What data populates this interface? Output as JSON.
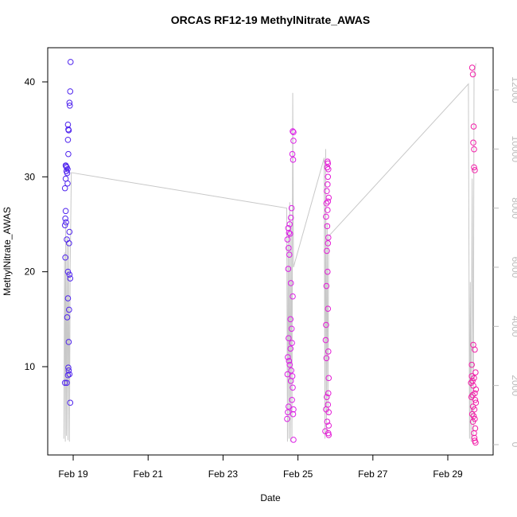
{
  "chart_data": {
    "type": "scatter",
    "title": "ORCAS RF12-19 MethylNitrate_AWAS",
    "x_label": "Date",
    "y_label": "MethylNitrate_AWAS",
    "xlim": [
      18.32,
      30.21
    ],
    "ylim": [
      0.7,
      43.6
    ],
    "y2lim": [
      -350,
      13426
    ],
    "xticks": [
      {
        "value": 19,
        "label": "Feb 19"
      },
      {
        "value": 21,
        "label": "Feb 21"
      },
      {
        "value": 23,
        "label": "Feb 23"
      },
      {
        "value": 25,
        "label": "Feb 25"
      },
      {
        "value": 27,
        "label": "Feb 27"
      },
      {
        "value": 29,
        "label": "Feb 29"
      }
    ],
    "yticks": [
      10,
      20,
      30,
      40
    ],
    "y2ticks": [
      0,
      2000,
      4000,
      6000,
      8000,
      10000,
      12000
    ],
    "series": [
      {
        "color": "#4f24ee",
        "x": [
          18.93,
          18.92,
          18.9,
          18.91,
          18.86,
          18.87,
          18.88,
          18.86,
          18.87,
          18.8,
          18.81,
          18.83,
          18.85,
          18.82,
          18.84,
          18.8,
          18.85,
          18.78,
          18.8,
          18.79,
          18.81,
          18.78,
          18.9,
          18.83,
          18.89,
          18.79,
          18.86,
          18.9,
          18.92,
          18.86,
          18.89,
          18.84,
          18.88,
          18.87,
          18.88,
          18.9,
          18.86,
          18.78,
          18.83,
          18.92
        ],
        "values": [
          42.1,
          39,
          37.8,
          37.5,
          35.5,
          35,
          34.9,
          33.9,
          32.4,
          31.2,
          31.1,
          31,
          30.8,
          30.6,
          30.4,
          29.8,
          29.3,
          28.8,
          26.4,
          25.6,
          25.2,
          24.9,
          24.2,
          23.4,
          23,
          21.5,
          20,
          19.7,
          19.3,
          17.2,
          16,
          15.2,
          12.6,
          9.9,
          9.6,
          9.2,
          9.1,
          8.3,
          8.3,
          6.2
        ]
      },
      {
        "color": "#dc1fe6",
        "x": [
          24.86,
          24.88,
          24.88,
          24.85,
          24.87,
          24.83,
          24.81,
          24.78,
          24.74,
          24.76,
          24.79,
          24.72,
          24.75,
          24.77,
          24.74,
          24.81,
          24.86,
          24.8,
          24.83,
          24.75,
          24.84,
          24.8,
          24.73,
          24.76,
          24.78,
          24.82,
          24.72,
          24.85,
          24.81,
          24.86,
          24.84,
          24.75,
          24.88,
          24.73,
          24.87,
          24.71,
          24.88
        ],
        "values": [
          34.8,
          34.7,
          33.8,
          32.4,
          31.8,
          26.7,
          25.7,
          25,
          24.6,
          24.1,
          24,
          23.4,
          22.5,
          21.8,
          20.3,
          18.8,
          17.4,
          15,
          14,
          13,
          12.5,
          11.9,
          11,
          10.6,
          10.2,
          9.6,
          9.2,
          9,
          8.5,
          7.8,
          6.5,
          5.8,
          5.5,
          5.2,
          5,
          4.5,
          2.3
        ]
      },
      {
        "color": "#e41ed6",
        "x": [
          25.79,
          25.8,
          25.78,
          25.81,
          25.8,
          25.79,
          25.77,
          25.82,
          25.8,
          25.76,
          25.79,
          25.75,
          25.78,
          25.81,
          25.8,
          25.77,
          25.79,
          25.76,
          25.8,
          25.75,
          25.74,
          25.81,
          25.76,
          25.82,
          25.81,
          25.77,
          25.8,
          25.75,
          25.82,
          25.78,
          25.82,
          25.73,
          25.81,
          25.82
        ],
        "values": [
          31.6,
          31.4,
          31,
          30.8,
          30,
          29.2,
          28.5,
          27.8,
          27.4,
          27.2,
          26.5,
          25.8,
          24.8,
          23.6,
          23,
          22.2,
          20,
          18.5,
          16.1,
          14.4,
          12.8,
          11.6,
          10.9,
          8.8,
          7.2,
          6.8,
          6,
          5.5,
          5.2,
          4.2,
          3.8,
          3.2,
          3,
          2.8
        ]
      },
      {
        "color": "#f21ea8",
        "x": [
          29.65,
          29.67,
          29.69,
          29.68,
          29.7,
          29.7,
          29.72,
          29.68,
          29.72,
          29.64,
          29.74,
          29.64,
          29.7,
          29.66,
          29.62,
          29.68,
          29.75,
          29.72,
          29.66,
          29.63,
          29.73,
          29.75,
          29.67,
          29.71,
          29.65,
          29.69,
          29.72,
          29.67,
          29.73,
          29.7,
          29.71,
          29.72,
          29.74
        ],
        "values": [
          41.5,
          40.8,
          35.3,
          33.6,
          32.9,
          31,
          30.7,
          12.3,
          11.8,
          10.2,
          9.4,
          9,
          8.8,
          8.5,
          8.3,
          8,
          7.6,
          7.2,
          7,
          6.8,
          6.5,
          6.2,
          5.8,
          5.5,
          5,
          4.8,
          4.5,
          4.2,
          3.5,
          3,
          2.5,
          2.2,
          2
        ]
      },
      {
        "color": "#c8c8c8",
        "axis": "y2",
        "x": [
          18.75,
          18.77,
          18.79,
          18.8,
          18.82,
          18.84,
          18.86,
          18.88,
          18.9,
          18.92,
          18.95,
          24.7,
          24.72,
          24.74,
          24.76,
          24.78,
          24.8,
          24.82,
          24.84,
          24.86,
          24.88,
          25.7,
          25.72,
          25.74,
          25.76,
          25.78,
          25.8,
          25.82,
          29.55,
          29.58,
          29.6,
          29.62,
          29.65,
          29.68,
          29.7,
          29.75
        ],
        "values": [
          200,
          6500,
          100,
          7500,
          300,
          7000,
          150,
          6800,
          100,
          6000,
          9200,
          8000,
          100,
          7200,
          200,
          8200,
          100,
          7500,
          200,
          11900,
          6000,
          9700,
          200,
          10000,
          300,
          7500,
          1000,
          7050,
          12200,
          200,
          5500,
          100,
          9000,
          300,
          12500,
          12900
        ]
      }
    ]
  }
}
